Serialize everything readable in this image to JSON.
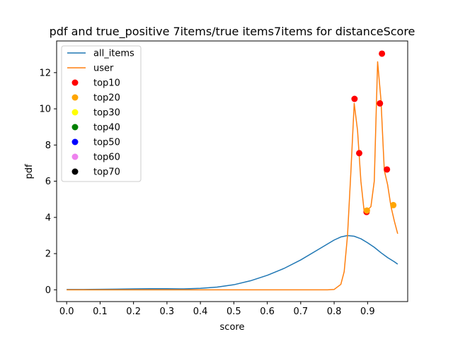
{
  "chart_data": {
    "type": "line",
    "title": "pdf and true_positive 7items/true items7items for distanceScore",
    "xlabel": "score",
    "ylabel": "pdf",
    "xlim": [
      -0.03,
      1.02
    ],
    "ylim": [
      -0.65,
      13.75
    ],
    "xticks": [
      0.0,
      0.1,
      0.2,
      0.3,
      0.4,
      0.5,
      0.6,
      0.7,
      0.8,
      0.9
    ],
    "xtick_labels": [
      "0.0",
      "0.1",
      "0.2",
      "0.3",
      "0.4",
      "0.5",
      "0.6",
      "0.7",
      "0.8",
      "0.9"
    ],
    "yticks": [
      0,
      2,
      4,
      6,
      8,
      10,
      12
    ],
    "ytick_labels": [
      "0",
      "2",
      "4",
      "6",
      "8",
      "10",
      "12"
    ],
    "grid": false,
    "legend_position": "top-left",
    "series": [
      {
        "name": "all_items",
        "color": "#1f77b4",
        "x": [
          0.0,
          0.05,
          0.1,
          0.15,
          0.2,
          0.25,
          0.3,
          0.35,
          0.4,
          0.45,
          0.5,
          0.55,
          0.6,
          0.65,
          0.7,
          0.75,
          0.8,
          0.82,
          0.84,
          0.86,
          0.88,
          0.9,
          0.92,
          0.94,
          0.96,
          0.98,
          0.99
        ],
        "y": [
          0.02,
          0.02,
          0.03,
          0.04,
          0.05,
          0.06,
          0.06,
          0.05,
          0.08,
          0.15,
          0.28,
          0.5,
          0.8,
          1.18,
          1.65,
          2.2,
          2.75,
          2.92,
          3.0,
          2.96,
          2.82,
          2.6,
          2.35,
          2.05,
          1.78,
          1.55,
          1.42
        ]
      },
      {
        "name": "user",
        "color": "#ff7f0e",
        "x": [
          0.0,
          0.1,
          0.2,
          0.3,
          0.4,
          0.5,
          0.6,
          0.7,
          0.78,
          0.8,
          0.82,
          0.83,
          0.84,
          0.85,
          0.86,
          0.87,
          0.88,
          0.89,
          0.9,
          0.91,
          0.92,
          0.93,
          0.94,
          0.95,
          0.96,
          0.97,
          0.98,
          0.99
        ],
        "y": [
          0.0,
          0.0,
          0.0,
          0.0,
          0.0,
          0.0,
          0.0,
          0.0,
          0.0,
          0.02,
          0.3,
          1.0,
          3.0,
          6.5,
          10.3,
          8.8,
          6.0,
          4.3,
          4.4,
          4.6,
          6.0,
          12.6,
          10.5,
          6.6,
          5.8,
          4.6,
          3.8,
          3.1
        ]
      }
    ],
    "scatter_groups": [
      {
        "name": "top10",
        "color": "#ff0000",
        "points": [
          [
            0.861,
            10.55
          ],
          [
            0.875,
            7.55
          ],
          [
            0.897,
            4.3
          ],
          [
            0.937,
            10.3
          ],
          [
            0.943,
            13.05
          ],
          [
            0.958,
            6.65
          ]
        ]
      },
      {
        "name": "top20",
        "color": "#ffa500",
        "points": [
          [
            0.898,
            4.38
          ],
          [
            0.977,
            4.68
          ]
        ]
      },
      {
        "name": "top30",
        "color": "#ffff00",
        "points": []
      },
      {
        "name": "top40",
        "color": "#008000",
        "points": []
      },
      {
        "name": "top50",
        "color": "#0000ff",
        "points": []
      },
      {
        "name": "top60",
        "color": "#ee82ee",
        "points": []
      },
      {
        "name": "top70",
        "color": "#000000",
        "points": []
      }
    ]
  }
}
